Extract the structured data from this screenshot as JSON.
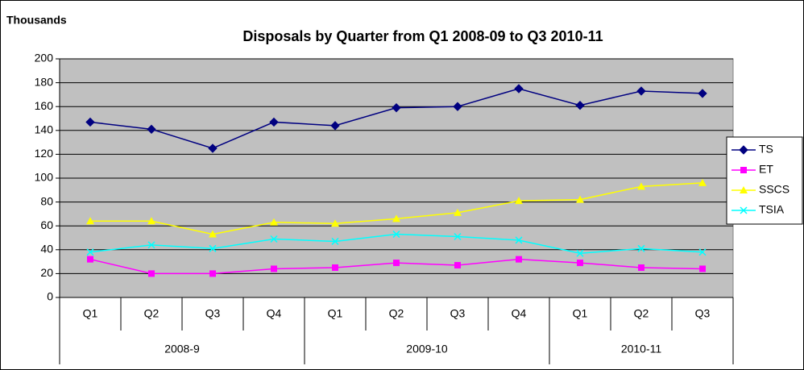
{
  "chart_data": {
    "type": "line",
    "title": "Disposals by Quarter from Q1 2008-09 to Q3 2010-11",
    "y_unit_label": "Thousands",
    "categories": [
      "Q1",
      "Q2",
      "Q3",
      "Q4",
      "Q1",
      "Q2",
      "Q3",
      "Q4",
      "Q1",
      "Q2",
      "Q3"
    ],
    "category_groups": [
      {
        "label": "2008-9",
        "count": 4
      },
      {
        "label": "2009-10",
        "count": 4
      },
      {
        "label": "2010-11",
        "count": 3
      }
    ],
    "series": [
      {
        "name": "TS",
        "color": "#000080",
        "marker": "diamond",
        "values": [
          147,
          141,
          125,
          147,
          144,
          159,
          160,
          175,
          161,
          173,
          171
        ]
      },
      {
        "name": "ET",
        "color": "#ff00ff",
        "marker": "square",
        "values": [
          32,
          20,
          20,
          24,
          25,
          29,
          27,
          32,
          29,
          25,
          24
        ]
      },
      {
        "name": "SSCS",
        "color": "#ffff00",
        "marker": "triangle",
        "values": [
          64,
          64,
          53,
          63,
          62,
          66,
          71,
          81,
          82,
          93,
          96
        ]
      },
      {
        "name": "TSIA",
        "color": "#00ffff",
        "marker": "x",
        "values": [
          38,
          44,
          41,
          49,
          47,
          53,
          51,
          48,
          37,
          41,
          38
        ]
      }
    ],
    "ylim": [
      0,
      200
    ],
    "yticks": [
      0,
      20,
      40,
      60,
      80,
      100,
      120,
      140,
      160,
      180,
      200
    ],
    "grid": true,
    "plot_background": "#c0c0c0",
    "legend": "right"
  }
}
